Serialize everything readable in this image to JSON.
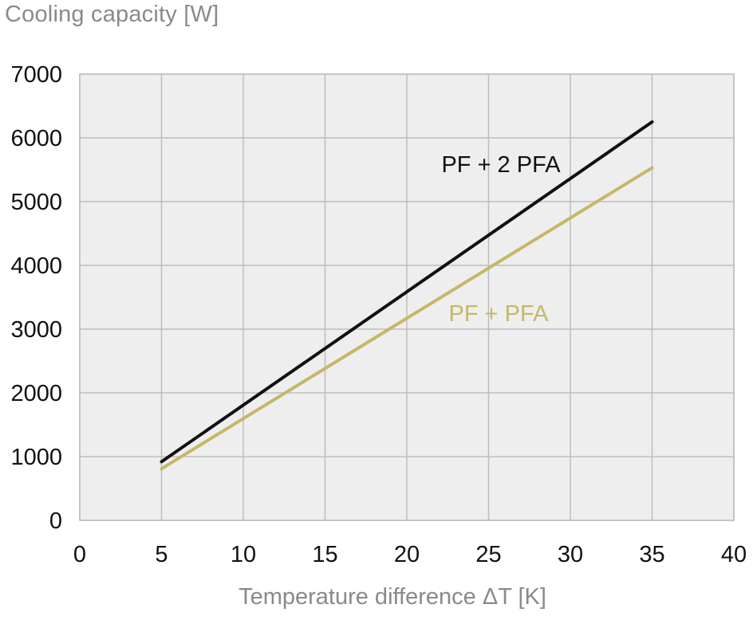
{
  "chart_data": {
    "type": "line",
    "ylabel": "Cooling capacity [W]",
    "xlabel": "Temperature difference ΔT [K]",
    "xlim": [
      0,
      40
    ],
    "ylim": [
      0,
      7000
    ],
    "xticks": [
      "0",
      "5",
      "10",
      "15",
      "20",
      "25",
      "30",
      "35",
      "40"
    ],
    "yticks": [
      "0",
      "1000",
      "2000",
      "3000",
      "4000",
      "5000",
      "6000",
      "7000"
    ],
    "grid": true,
    "series": [
      {
        "name": "PF + 2 PFA",
        "color": "#111111",
        "x": [
          5,
          35
        ],
        "y": [
          920,
          6250
        ]
      },
      {
        "name": "PF + PFA",
        "color": "#c5b866",
        "x": [
          5,
          35
        ],
        "y": [
          810,
          5530
        ]
      }
    ],
    "colors": {
      "plot_background": "#eeeeee",
      "grid": "#bdbdbd",
      "axis_text": "#8a8a8a"
    }
  }
}
